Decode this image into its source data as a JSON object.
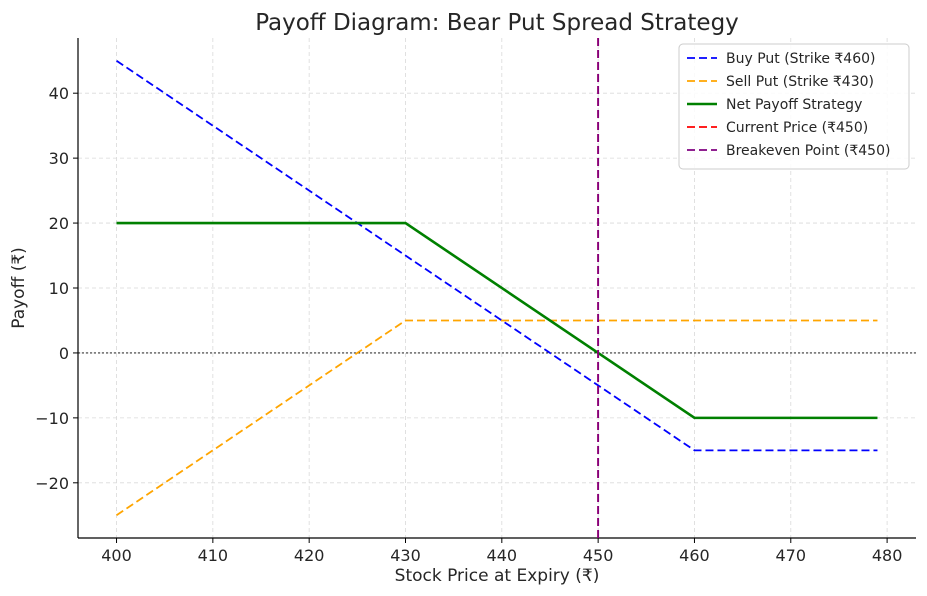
{
  "chart_data": {
    "type": "line",
    "title": "Payoff Diagram: Bear Put Spread Strategy",
    "xlabel": "Stock Price at Expiry (₹)",
    "ylabel": "Payoff (₹)",
    "xlim": [
      396,
      483
    ],
    "ylim": [
      -28.5,
      48.5
    ],
    "xticks": [
      400,
      410,
      420,
      430,
      440,
      450,
      460,
      470,
      480
    ],
    "yticks": [
      -20,
      -10,
      0,
      10,
      20,
      30,
      40
    ],
    "ytick_labels": [
      "−20",
      "−10",
      "0",
      "10",
      "20",
      "30",
      "40"
    ],
    "grid": true,
    "legend_position": "top-right",
    "series": [
      {
        "name": "Buy Put (Strike ₹460)",
        "color": "#0000ff",
        "style": "dashed",
        "points": [
          [
            400,
            45
          ],
          [
            460,
            -15
          ],
          [
            479,
            -15
          ]
        ]
      },
      {
        "name": "Sell Put (Strike ₹430)",
        "color": "#ffa500",
        "style": "dashed",
        "points": [
          [
            400,
            -25
          ],
          [
            430,
            5
          ],
          [
            479,
            5
          ]
        ]
      },
      {
        "name": "Net Payoff Strategy",
        "color": "#008000",
        "style": "solid",
        "points": [
          [
            400,
            20
          ],
          [
            430,
            20
          ],
          [
            460,
            -10
          ],
          [
            479,
            -10
          ]
        ]
      },
      {
        "name": "Current Price (₹450)",
        "color": "#ff0000",
        "style": "dashed",
        "vline": 450
      },
      {
        "name": "Breakeven Point (₹450)",
        "color": "#800080",
        "style": "dashed",
        "vline": 450
      }
    ],
    "zero_line": {
      "y": 0,
      "color": "#000000",
      "style": "dotted"
    }
  }
}
